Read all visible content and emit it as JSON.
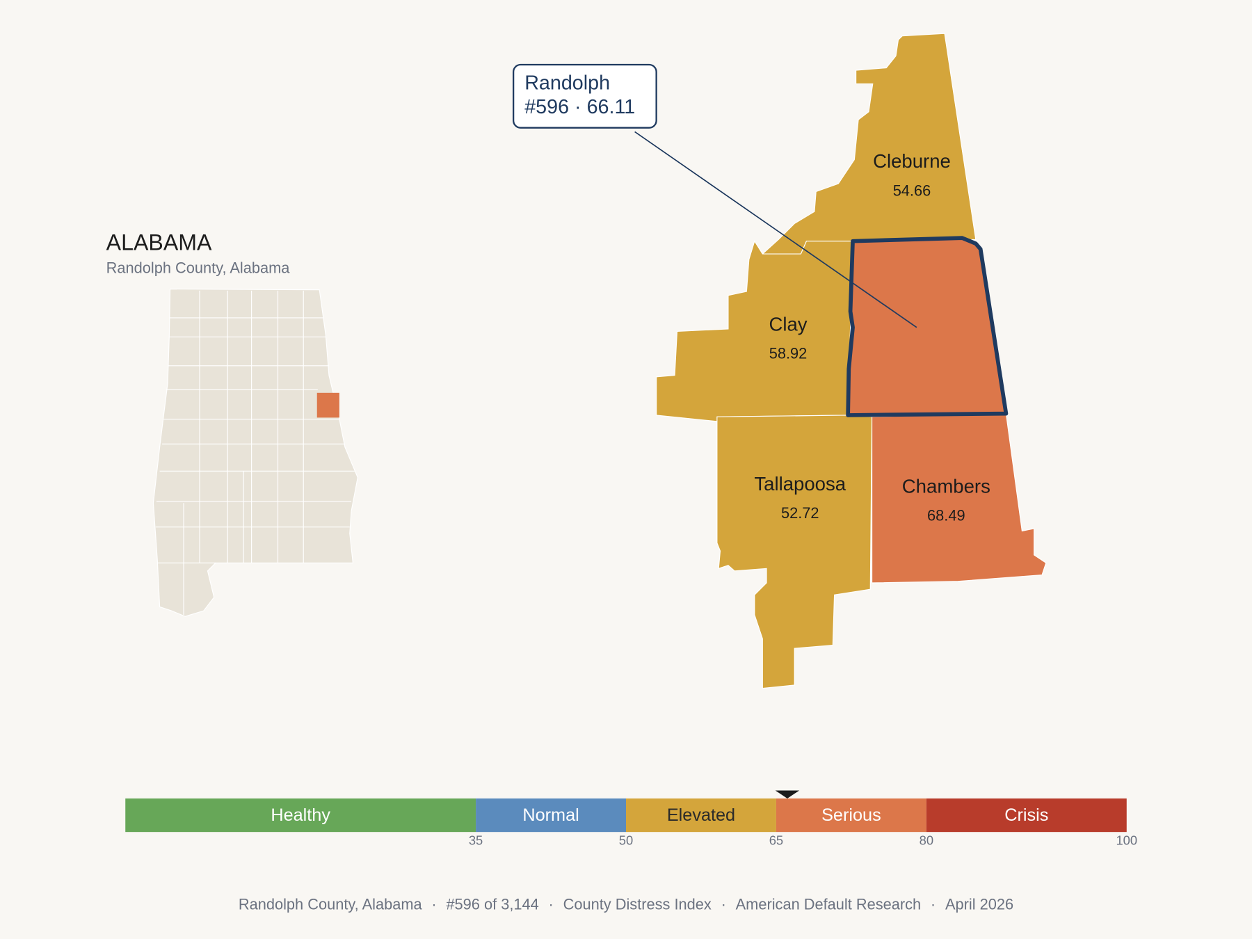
{
  "header": {
    "title": "ALABAMA",
    "subtitle": "Randolph County, Alabama"
  },
  "callout": {
    "name": "Randolph",
    "rank": "#596",
    "separator": "·",
    "score": 66.11
  },
  "counties": [
    {
      "name": "Cleburne",
      "score": 54.66
    },
    {
      "name": "Clay",
      "score": 58.92
    },
    {
      "name": "Tallapoosa",
      "score": 52.72
    },
    {
      "name": "Chambers",
      "score": 68.49
    }
  ],
  "scale": {
    "range": [
      0,
      100
    ],
    "ticks": [
      35,
      50,
      65,
      80,
      100
    ],
    "bands": [
      {
        "label": "Healthy",
        "color": "#67a758",
        "text_color": "#ffffff"
      },
      {
        "label": "Normal",
        "color": "#5b8bbd",
        "text_color": "#ffffff"
      },
      {
        "label": "Elevated",
        "color": "#d4a53b",
        "text_color": "#2a2a2a"
      },
      {
        "label": "Serious",
        "color": "#dc774a",
        "text_color": "#ffffff"
      },
      {
        "label": "Crisis",
        "color": "#b83c2b",
        "text_color": "#ffffff"
      }
    ]
  },
  "footer": {
    "separator": "·",
    "items": [
      "Randolph County, Alabama",
      "#596 of 3,144",
      "County Distress Index",
      "American Default Research",
      "April 2026"
    ]
  }
}
